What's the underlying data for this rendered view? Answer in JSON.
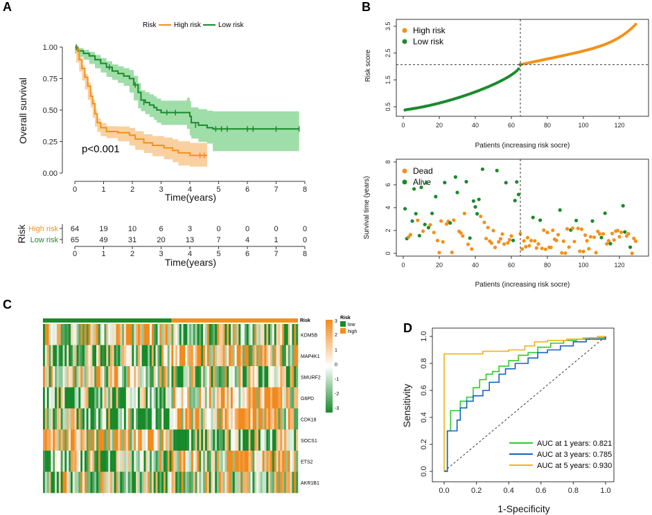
{
  "colors": {
    "high": "#F39019",
    "low": "#1A8A2A",
    "high_band": "#F8C88F",
    "low_band": "#8ED79A",
    "roc1": "#2DC92D",
    "roc3": "#1560C8",
    "roc5": "#F2B114"
  },
  "panel_labels": [
    "A",
    "B",
    "C",
    "D"
  ],
  "chart_data": [
    {
      "id": "A",
      "type": "line",
      "subtype": "kaplan-meier",
      "legend_title": "Risk",
      "legend": [
        "High risk",
        "Low risk"
      ],
      "xlabel": "Time(years)",
      "ylabel": "Overall survival",
      "xlim": [
        0,
        8
      ],
      "ylim": [
        0,
        1
      ],
      "xticks": [
        "0",
        "1",
        "2",
        "3",
        "4",
        "5",
        "6",
        "7",
        "8"
      ],
      "yticks": [
        "0.00",
        "0.25",
        "0.50",
        "0.75",
        "1.00"
      ],
      "pvalue": "p<0.001",
      "series": [
        {
          "name": "High risk",
          "points": [
            [
              0,
              1
            ],
            [
              0.05,
              0.98
            ],
            [
              0.15,
              0.9
            ],
            [
              0.25,
              0.83
            ],
            [
              0.35,
              0.76
            ],
            [
              0.45,
              0.69
            ],
            [
              0.55,
              0.61
            ],
            [
              0.62,
              0.55
            ],
            [
              0.7,
              0.47
            ],
            [
              0.78,
              0.4
            ],
            [
              0.9,
              0.36
            ],
            [
              1.1,
              0.33
            ],
            [
              1.5,
              0.32
            ],
            [
              1.9,
              0.3
            ],
            [
              2.1,
              0.27
            ],
            [
              2.4,
              0.24
            ],
            [
              2.7,
              0.22
            ],
            [
              3.1,
              0.2
            ],
            [
              3.4,
              0.18
            ],
            [
              3.6,
              0.16
            ],
            [
              4.0,
              0.14
            ],
            [
              4.6,
              0.14
            ]
          ]
        },
        {
          "name": "Low risk",
          "points": [
            [
              0,
              1
            ],
            [
              0.1,
              0.97
            ],
            [
              0.3,
              0.95
            ],
            [
              0.5,
              0.93
            ],
            [
              0.7,
              0.9
            ],
            [
              0.9,
              0.87
            ],
            [
              1.1,
              0.84
            ],
            [
              1.3,
              0.81
            ],
            [
              1.5,
              0.79
            ],
            [
              1.7,
              0.77
            ],
            [
              1.9,
              0.75
            ],
            [
              2.05,
              0.7
            ],
            [
              2.2,
              0.64
            ],
            [
              2.3,
              0.58
            ],
            [
              2.45,
              0.56
            ],
            [
              2.6,
              0.54
            ],
            [
              2.75,
              0.52
            ],
            [
              2.85,
              0.5
            ],
            [
              3.0,
              0.48
            ],
            [
              3.9,
              0.48
            ],
            [
              4.0,
              0.45
            ],
            [
              4.05,
              0.4
            ],
            [
              4.3,
              0.38
            ],
            [
              4.6,
              0.36
            ],
            [
              4.8,
              0.35
            ],
            [
              7.8,
              0.35
            ]
          ]
        }
      ],
      "risk_table": {
        "title": "Risk",
        "groups": [
          "High risk",
          "Low risk"
        ],
        "counts": [
          [
            64,
            19,
            10,
            6,
            3,
            0,
            0,
            0,
            0
          ],
          [
            65,
            49,
            31,
            20,
            13,
            7,
            4,
            1,
            0
          ]
        ]
      }
    },
    {
      "id": "B-top",
      "type": "scatter",
      "ylabel": "Risk score",
      "xlabel": "Patients (increasing risk socre)",
      "xlim": [
        0,
        130
      ],
      "ylim": [
        0.3,
        3.6
      ],
      "xticks": [
        0,
        20,
        40,
        60,
        80,
        100,
        120
      ],
      "yticks": [
        "0.5",
        "1.5",
        "2.5",
        "3.5"
      ],
      "legend": [
        "High risk",
        "Low risk"
      ],
      "cutoff_x": 65,
      "cutoff_y": 2.07
    },
    {
      "id": "B-bottom",
      "type": "scatter",
      "ylabel": "Survival time (years)",
      "xlabel": "Patients (increasing risk socre)",
      "xlim": [
        0,
        130
      ],
      "ylim": [
        0,
        8
      ],
      "xticks": [
        0,
        20,
        40,
        60,
        80,
        100,
        120
      ],
      "yticks": [
        "0",
        "2",
        "4",
        "6",
        "8"
      ],
      "legend": [
        "Dead",
        "Alive"
      ],
      "cutoff_x": 65
    },
    {
      "id": "C",
      "type": "heatmap",
      "annotation_label": "Risk",
      "rows": [
        "KDM5B",
        "MAP4K1",
        "SMURF2",
        "G6PD",
        "CDK18",
        "SOCS1",
        "ETS2",
        "AKR1B1"
      ],
      "legend_title": "Risk",
      "legend_levels": [
        "low",
        "high"
      ],
      "scale_ticks": [
        "3",
        "2",
        "1",
        "0",
        "-1",
        "-2",
        "-3"
      ],
      "n_low": 65,
      "n_high": 64
    },
    {
      "id": "D",
      "type": "line",
      "subtype": "roc",
      "xlabel": "1-Specificity",
      "ylabel": "Sensitivity",
      "xlim": [
        0,
        1
      ],
      "ylim": [
        0,
        1
      ],
      "xticks": [
        "0.0",
        "0.2",
        "0.4",
        "0.6",
        "0.8",
        "1.0"
      ],
      "yticks": [
        "0.0",
        "0.2",
        "0.4",
        "0.6",
        "0.8",
        "1.0"
      ],
      "series": [
        {
          "name": "AUC at 1 years: 0.821",
          "auc": 0.821,
          "points": [
            [
              0,
              0
            ],
            [
              0.02,
              0.3
            ],
            [
              0.04,
              0.45
            ],
            [
              0.08,
              0.45
            ],
            [
              0.1,
              0.52
            ],
            [
              0.14,
              0.55
            ],
            [
              0.18,
              0.62
            ],
            [
              0.22,
              0.68
            ],
            [
              0.26,
              0.72
            ],
            [
              0.3,
              0.74
            ],
            [
              0.34,
              0.78
            ],
            [
              0.4,
              0.82
            ],
            [
              0.46,
              0.86
            ],
            [
              0.52,
              0.88
            ],
            [
              0.58,
              0.92
            ],
            [
              0.66,
              0.95
            ],
            [
              0.74,
              0.97
            ],
            [
              0.82,
              0.98
            ],
            [
              0.9,
              0.99
            ],
            [
              1,
              1
            ]
          ]
        },
        {
          "name": "AUC at 3 years: 0.785",
          "auc": 0.785,
          "points": [
            [
              0,
              0
            ],
            [
              0.02,
              0.3
            ],
            [
              0.06,
              0.3
            ],
            [
              0.08,
              0.38
            ],
            [
              0.1,
              0.47
            ],
            [
              0.14,
              0.52
            ],
            [
              0.18,
              0.56
            ],
            [
              0.24,
              0.6
            ],
            [
              0.28,
              0.66
            ],
            [
              0.34,
              0.72
            ],
            [
              0.38,
              0.76
            ],
            [
              0.44,
              0.8
            ],
            [
              0.52,
              0.84
            ],
            [
              0.58,
              0.88
            ],
            [
              0.64,
              0.9
            ],
            [
              0.72,
              0.93
            ],
            [
              0.8,
              0.96
            ],
            [
              0.88,
              0.98
            ],
            [
              1,
              1
            ]
          ]
        },
        {
          "name": "AUC at 5 years: 0.930",
          "auc": 0.93,
          "points": [
            [
              0,
              0
            ],
            [
              0.0,
              0.87
            ],
            [
              0.2,
              0.87
            ],
            [
              0.24,
              0.89
            ],
            [
              0.4,
              0.9
            ],
            [
              0.5,
              0.93
            ],
            [
              0.56,
              0.96
            ],
            [
              0.64,
              0.97
            ],
            [
              0.76,
              0.98
            ],
            [
              0.86,
              0.99
            ],
            [
              0.95,
              1
            ],
            [
              1,
              1
            ]
          ]
        }
      ]
    }
  ]
}
